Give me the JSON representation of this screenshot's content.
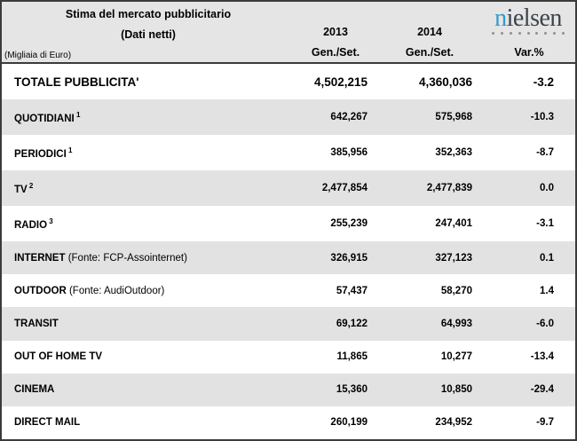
{
  "header": {
    "title": "Stima del mercato pubblicitario",
    "subtitle": "(Dati netti)",
    "unit_note": "(Migliaia di Euro)",
    "col_2013": {
      "year": "2013",
      "period": "Gen./Set."
    },
    "col_2014": {
      "year": "2014",
      "period": "Gen./Set."
    },
    "col_var": "Var.%"
  },
  "logo": {
    "name": "nielsen",
    "text_blue": "n",
    "text_dark": "ielsen",
    "dots": 9,
    "blue_color": "#3399cc",
    "dark_color": "#3d434d"
  },
  "colors": {
    "border": "#3b3b3b",
    "header_bg": "#e5e5e5",
    "row_alt_bg": "#e2e2e2",
    "row_bg": "#ffffff",
    "text": "#000000"
  },
  "rows": [
    {
      "label": "TOTALE PUBBLICITA'",
      "sup": "",
      "note": "",
      "v2013": "4,502,215",
      "v2014": "4,360,036",
      "var": "-3.2",
      "total": true
    },
    {
      "label": "QUOTIDIANI",
      "sup": "1",
      "note": "",
      "v2013": "642,267",
      "v2014": "575,968",
      "var": "-10.3",
      "total": false
    },
    {
      "label": "PERIODICI",
      "sup": "1",
      "note": "",
      "v2013": "385,956",
      "v2014": "352,363",
      "var": "-8.7",
      "total": false
    },
    {
      "label": "TV",
      "sup": "2",
      "note": "",
      "v2013": "2,477,854",
      "v2014": "2,477,839",
      "var": "0.0",
      "total": false
    },
    {
      "label": "RADIO",
      "sup": "3",
      "note": "",
      "v2013": "255,239",
      "v2014": "247,401",
      "var": "-3.1",
      "total": false
    },
    {
      "label": "INTERNET",
      "sup": "",
      "note": "(Fonte: FCP-Assointernet)",
      "v2013": "326,915",
      "v2014": "327,123",
      "var": "0.1",
      "total": false
    },
    {
      "label": "OUTDOOR",
      "sup": "",
      "note": "(Fonte: AudiOutdoor)",
      "v2013": "57,437",
      "v2014": "58,270",
      "var": "1.4",
      "total": false
    },
    {
      "label": "TRANSIT",
      "sup": "",
      "note": "",
      "v2013": "69,122",
      "v2014": "64,993",
      "var": "-6.0",
      "total": false
    },
    {
      "label": "OUT OF HOME TV",
      "sup": "",
      "note": "",
      "v2013": "11,865",
      "v2014": "10,277",
      "var": "-13.4",
      "total": false
    },
    {
      "label": "CINEMA",
      "sup": "",
      "note": "",
      "v2013": "15,360",
      "v2014": "10,850",
      "var": "-29.4",
      "total": false
    },
    {
      "label": "DIRECT MAIL",
      "sup": "",
      "note": "",
      "v2013": "260,199",
      "v2014": "234,952",
      "var": "-9.7",
      "total": false
    }
  ]
}
